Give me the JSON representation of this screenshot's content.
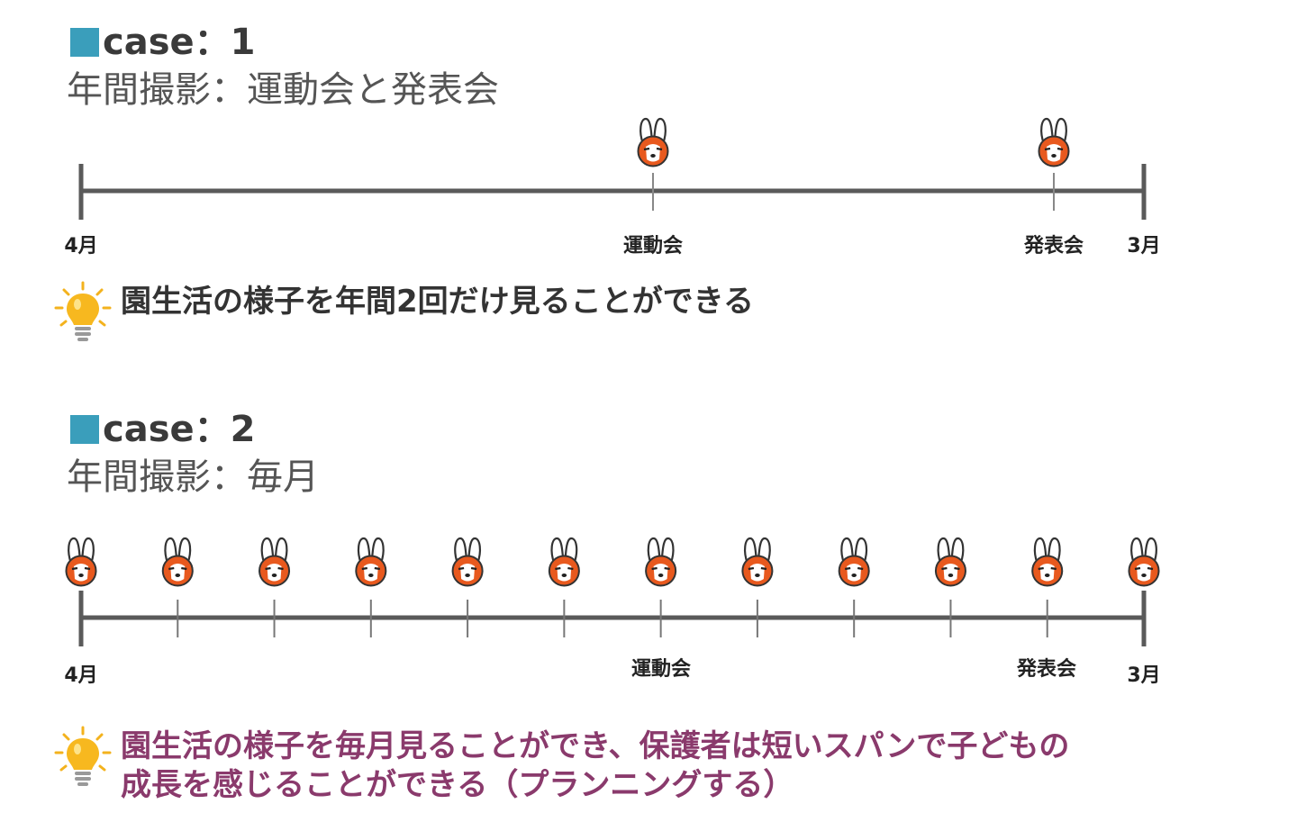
{
  "case1": {
    "title": "case：1",
    "subtitle": "年間撮影：運動会と発表会",
    "start_label": "4月",
    "end_label": "3月",
    "events": [
      "運動会",
      "発表会"
    ],
    "shoot_count": 2,
    "tip": "園生活の様子を年間2回だけ見ることができる"
  },
  "case2": {
    "title": "case：2",
    "subtitle": "年間撮影：毎月",
    "start_label": "4月",
    "end_label": "3月",
    "events": [
      "運動会",
      "発表会"
    ],
    "shoot_count": 12,
    "tip_line1": "園生活の様子を毎月見ることができ、保護者は短いスパンで子どもの",
    "tip_line2": "成長を感じることができる（プランニングする）"
  },
  "icons": {
    "square": "teal-square-icon",
    "rabbit": "rabbit-face-icon",
    "bulb": "lightbulb-icon"
  },
  "colors": {
    "accent": "#3a9ebb",
    "rabbit": "#e8591e",
    "tip2": "#8a3a6c",
    "line": "#5a5a5a"
  }
}
